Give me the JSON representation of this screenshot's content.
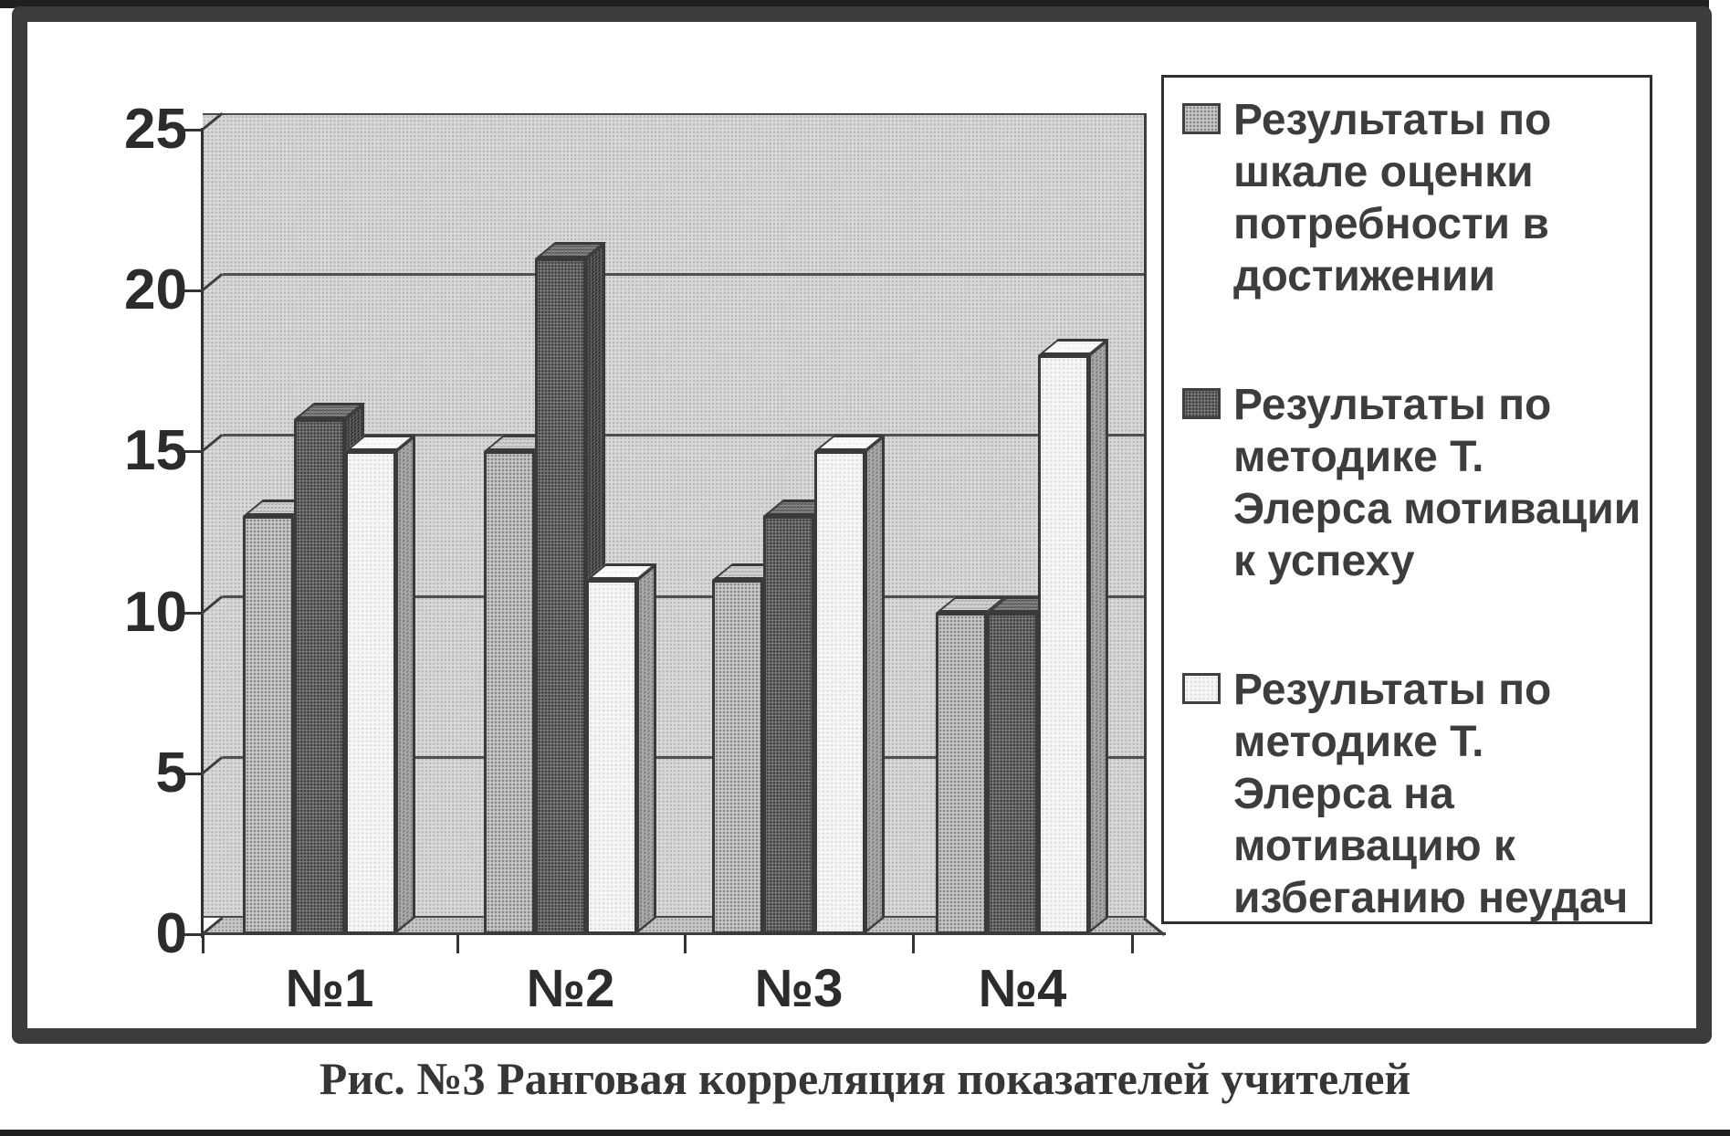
{
  "figure": {
    "caption": "Рис. №3 Ранговая корреляция показателей учителей"
  },
  "colors": {
    "frame": "#3c3c3c",
    "wall": "#d9d9d9",
    "series_light": "#c6c6c6",
    "series_dark": "#7e7e7e",
    "series_white": "#f6f6f6",
    "line": "#3a3a3a"
  },
  "chart_data": {
    "type": "bar",
    "style": "3d-clustered-column",
    "title": "",
    "xlabel": "",
    "ylabel": "",
    "ylim": [
      0,
      25
    ],
    "yticks": [
      0,
      5,
      10,
      15,
      20,
      25
    ],
    "grid": true,
    "legend_position": "right",
    "categories": [
      "№1",
      "№2",
      "№3",
      "№4"
    ],
    "series": [
      {
        "name": "Результаты по шкале оценки потребности в достижении",
        "texture": "light",
        "color": "#c6c6c6",
        "values": [
          13,
          15,
          11,
          10
        ]
      },
      {
        "name": "Результаты по методике Т. Элерса мотивации к успеху",
        "texture": "dark",
        "color": "#7e7e7e",
        "values": [
          16,
          21,
          13,
          10
        ]
      },
      {
        "name": "Результаты по методике Т. Элерса на мотивацию к избеганию неудач",
        "texture": "white",
        "color": "#f6f6f6",
        "values": [
          15,
          11,
          15,
          18
        ]
      }
    ]
  },
  "legend": {
    "entries": [
      {
        "texture": "light",
        "lines": [
          "Результаты по",
          "шкале оценки",
          "потребности в",
          "достижении"
        ]
      },
      {
        "texture": "dark",
        "lines": [
          "Результаты по",
          "методике Т.",
          "Элерса мотивации",
          "к успеху"
        ]
      },
      {
        "texture": "white",
        "lines": [
          "Результаты по",
          "методике Т.",
          "Элерса на",
          "мотивацию к",
          "избеганию неудач"
        ]
      }
    ]
  }
}
